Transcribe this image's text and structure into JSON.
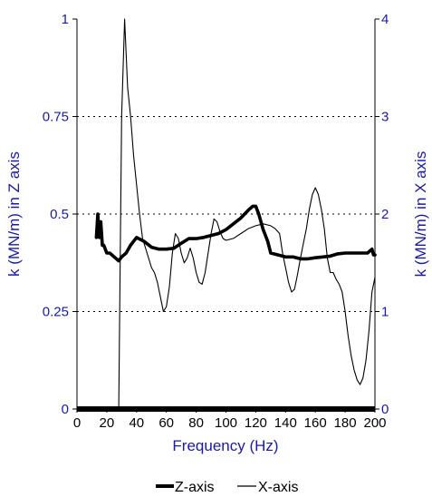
{
  "chart_data": {
    "type": "line",
    "xlabel": "Frequency (Hz)",
    "ylabel_left": "k (MN/m) in Z axis",
    "ylabel_right": "k (MN/m) in X axis",
    "xlim": [
      0,
      200
    ],
    "ylim_left": [
      0,
      1
    ],
    "ylim_right": [
      0,
      4
    ],
    "x_ticks": [
      "0",
      "20",
      "40",
      "60",
      "80",
      "100",
      "120",
      "140",
      "160",
      "180",
      "200"
    ],
    "y_left_ticks": [
      "0",
      "0.25",
      "0.5",
      "0.75",
      "1"
    ],
    "y_right_ticks": [
      "0",
      "1",
      "2",
      "3",
      "4"
    ],
    "grid": "horizontal dotted",
    "legend_position": "bottom-center",
    "colors": {
      "axis_text": "#1a1aa6",
      "line": "#000000"
    },
    "series": [
      {
        "name": "Z-axis",
        "axis": "left",
        "style": "thick",
        "x": [
          13,
          14,
          15,
          16,
          17,
          18,
          20,
          22,
          25,
          28,
          30,
          33,
          36,
          40,
          45,
          50,
          55,
          60,
          65,
          70,
          75,
          80,
          85,
          90,
          95,
          100,
          105,
          110,
          115,
          118,
          120,
          122,
          125,
          128,
          130,
          135,
          140,
          145,
          150,
          155,
          160,
          165,
          170,
          175,
          180,
          185,
          190,
          195,
          198,
          199,
          200
        ],
        "y": [
          0.44,
          0.5,
          0.44,
          0.48,
          0.42,
          0.42,
          0.4,
          0.4,
          0.39,
          0.38,
          0.39,
          0.4,
          0.42,
          0.44,
          0.43,
          0.415,
          0.41,
          0.41,
          0.412,
          0.425,
          0.437,
          0.437,
          0.44,
          0.445,
          0.45,
          0.46,
          0.475,
          0.49,
          0.51,
          0.52,
          0.52,
          0.5,
          0.46,
          0.43,
          0.4,
          0.395,
          0.39,
          0.39,
          0.385,
          0.385,
          0.388,
          0.39,
          0.392,
          0.398,
          0.4,
          0.4,
          0.4,
          0.4,
          0.41,
          0.395,
          0.395
        ]
      },
      {
        "name": "X-axis",
        "axis": "right",
        "style": "thin",
        "x": [
          12,
          13,
          14,
          15,
          16,
          17,
          18,
          20,
          22,
          24,
          26,
          28,
          30,
          32,
          34,
          36,
          38,
          40,
          42,
          44,
          46,
          48,
          50,
          52,
          54,
          56,
          58,
          60,
          62,
          64,
          66,
          68,
          70,
          72,
          74,
          76,
          78,
          80,
          82,
          84,
          86,
          88,
          90,
          92,
          94,
          96,
          98,
          100,
          105,
          110,
          115,
          120,
          125,
          130,
          133,
          136,
          138,
          140,
          142,
          144,
          146,
          148,
          150,
          152,
          154,
          156,
          158,
          160,
          162,
          164,
          166,
          168,
          170,
          172,
          174,
          176,
          178,
          180,
          182,
          184,
          186,
          188,
          190,
          192,
          194,
          196,
          198,
          200
        ],
        "y": [
          0,
          0,
          0,
          0,
          0,
          0,
          0,
          0,
          0,
          0,
          0,
          0,
          3.0,
          4.0,
          3.3,
          3.0,
          2.6,
          2.3,
          2.0,
          1.75,
          1.65,
          1.55,
          1.45,
          1.4,
          1.3,
          1.15,
          1.0,
          1.05,
          1.25,
          1.6,
          1.8,
          1.75,
          1.6,
          1.5,
          1.55,
          1.65,
          1.55,
          1.4,
          1.3,
          1.28,
          1.4,
          1.6,
          1.8,
          1.95,
          1.92,
          1.82,
          1.75,
          1.73,
          1.75,
          1.8,
          1.85,
          1.88,
          1.9,
          1.88,
          1.85,
          1.8,
          1.6,
          1.45,
          1.3,
          1.2,
          1.23,
          1.38,
          1.55,
          1.7,
          1.85,
          2.05,
          2.2,
          2.27,
          2.2,
          2.05,
          1.85,
          1.55,
          1.4,
          1.4,
          1.33,
          1.28,
          1.2,
          1.0,
          0.75,
          0.55,
          0.4,
          0.3,
          0.25,
          0.32,
          0.5,
          0.8,
          1.2,
          1.35
        ]
      }
    ]
  }
}
